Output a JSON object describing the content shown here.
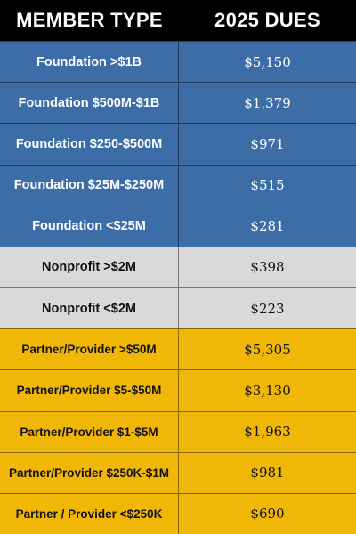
{
  "header": {
    "member_type": "MEMBER TYPE",
    "dues": "2025 DUES"
  },
  "colors": {
    "header_bg": "#000000",
    "foundation": "#3c6da6",
    "nonprofit": "#d9d9d9",
    "partner": "#f1b707"
  },
  "rows": [
    {
      "group": "foundation",
      "type": "Foundation >$1B",
      "dues": "$5,150"
    },
    {
      "group": "foundation",
      "type": "Foundation $500M-$1B",
      "dues": "$1,379"
    },
    {
      "group": "foundation",
      "type": "Foundation $250-$500M",
      "dues": "$971"
    },
    {
      "group": "foundation",
      "type": "Foundation $25M-$250M",
      "dues": "$515"
    },
    {
      "group": "foundation",
      "type": "Foundation <$25M",
      "dues": "$281"
    },
    {
      "group": "nonprofit",
      "type": "Nonprofit >$2M",
      "dues": "$398"
    },
    {
      "group": "nonprofit",
      "type": "Nonprofit <$2M",
      "dues": "$223"
    },
    {
      "group": "partner",
      "type": "Partner/Provider >$50M",
      "dues": "$5,305"
    },
    {
      "group": "partner",
      "type": "Partner/Provider $5-$50M",
      "dues": "$3,130"
    },
    {
      "group": "partner",
      "type": "Partner/Provider $1-$5M",
      "dues": "$1,963"
    },
    {
      "group": "partner",
      "type": "Partner/Provider $250K-$1M",
      "dues": "$981"
    },
    {
      "group": "partner",
      "type": "Partner / Provider <$250K",
      "dues": "$690"
    }
  ]
}
